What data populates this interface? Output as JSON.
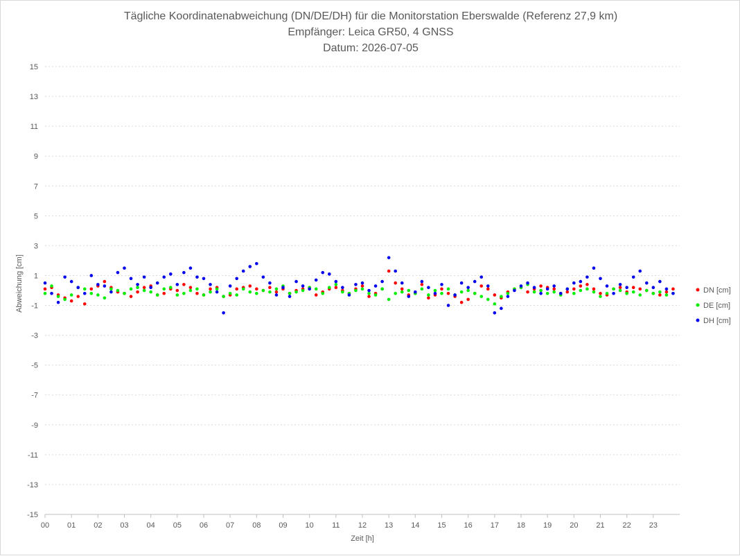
{
  "chart_data": {
    "type": "scatter",
    "title": "Tägliche Koordinatenabweichung (DN/DE/DH) für die Monitorstation Eberswalde (Referenz 27,9 km)",
    "subtitle": "Empfänger: Leica GR50, 4 GNSS",
    "date_line": "Datum: 2026-07-05",
    "xlabel": "Zeit [h]",
    "ylabel": "Abweichung [cm]",
    "xlim": [
      0,
      24
    ],
    "ylim": [
      -15,
      15
    ],
    "y_ticks": [
      -15,
      -13,
      -11,
      -9,
      -7,
      -5,
      -3,
      -1,
      1,
      3,
      5,
      7,
      9,
      11,
      13,
      15
    ],
    "x_tick_labels": [
      "00",
      "01",
      "02",
      "03",
      "04",
      "05",
      "06",
      "07",
      "08",
      "09",
      "10",
      "11",
      "12",
      "13",
      "14",
      "15",
      "16",
      "17",
      "18",
      "19",
      "20",
      "21",
      "22",
      "23"
    ],
    "grid": "horizontal dashed",
    "legend_position": "right",
    "x": [
      0.0,
      0.25,
      0.5,
      0.75,
      1.0,
      1.25,
      1.5,
      1.75,
      2.0,
      2.25,
      2.5,
      2.75,
      3.0,
      3.25,
      3.5,
      3.75,
      4.0,
      4.25,
      4.5,
      4.75,
      5.0,
      5.25,
      5.5,
      5.75,
      6.0,
      6.25,
      6.5,
      6.75,
      7.0,
      7.25,
      7.5,
      7.75,
      8.0,
      8.25,
      8.5,
      8.75,
      9.0,
      9.25,
      9.5,
      9.75,
      10.0,
      10.25,
      10.5,
      10.75,
      11.0,
      11.25,
      11.5,
      11.75,
      12.0,
      12.25,
      12.5,
      12.75,
      13.0,
      13.25,
      13.5,
      13.75,
      14.0,
      14.25,
      14.5,
      14.75,
      15.0,
      15.25,
      15.5,
      15.75,
      16.0,
      16.25,
      16.5,
      16.75,
      17.0,
      17.25,
      17.5,
      17.75,
      18.0,
      18.25,
      18.5,
      18.75,
      19.0,
      19.25,
      19.5,
      19.75,
      20.0,
      20.25,
      20.5,
      20.75,
      21.0,
      21.25,
      21.5,
      21.75,
      22.0,
      22.25,
      22.5,
      22.75,
      23.0,
      23.25,
      23.5,
      23.75
    ],
    "series": [
      {
        "name": "DN [cm]",
        "color": "#ff0000",
        "values": [
          0.1,
          0.2,
          -0.3,
          -0.5,
          -0.7,
          -0.4,
          -0.9,
          0.1,
          0.3,
          0.6,
          0.2,
          -0.1,
          -0.2,
          -0.4,
          -0.1,
          0.2,
          0.3,
          -0.3,
          -0.2,
          0.1,
          0.0,
          0.4,
          0.2,
          -0.2,
          -0.3,
          0.1,
          0.2,
          -0.4,
          -0.3,
          0.1,
          0.2,
          0.3,
          0.1,
          0.0,
          0.2,
          -0.1,
          0.1,
          -0.2,
          0.0,
          0.1,
          0.2,
          -0.3,
          -0.1,
          0.1,
          0.2,
          0.0,
          -0.2,
          0.1,
          0.3,
          -0.4,
          -0.2,
          0.1,
          1.3,
          0.5,
          0.1,
          -0.3,
          -0.2,
          0.4,
          -0.5,
          -0.3,
          0.1,
          -0.2,
          -0.4,
          -0.8,
          -0.6,
          -0.2,
          0.3,
          0.1,
          -0.3,
          -0.5,
          -0.1,
          0.1,
          0.2,
          -0.1,
          0.1,
          0.3,
          0.2,
          0.1,
          -0.2,
          -0.1,
          0.1,
          0.3,
          0.4,
          0.1,
          -0.2,
          -0.3,
          0.1,
          0.2,
          -0.1,
          0.2,
          0.1,
          0.0,
          -0.2,
          -0.3,
          -0.1,
          0.1
        ]
      },
      {
        "name": "DE [cm]",
        "color": "#00ee00",
        "values": [
          -0.2,
          0.3,
          -0.4,
          -0.6,
          -0.3,
          0.2,
          0.1,
          -0.2,
          -0.3,
          -0.5,
          0.1,
          0.0,
          -0.2,
          0.1,
          0.2,
          0.0,
          -0.1,
          -0.3,
          0.1,
          0.2,
          -0.3,
          -0.2,
          0.0,
          0.1,
          -0.3,
          -0.1,
          0.1,
          -0.4,
          -0.2,
          -0.3,
          0.1,
          -0.1,
          -0.2,
          0.0,
          -0.1,
          0.1,
          0.3,
          -0.2,
          -0.1,
          0.0,
          0.2,
          0.1,
          -0.2,
          0.2,
          0.4,
          -0.1,
          -0.2,
          0.0,
          0.1,
          -0.2,
          -0.3,
          0.1,
          -0.6,
          -0.2,
          -0.1,
          0.0,
          -0.2,
          0.1,
          -0.3,
          0.0,
          -0.2,
          0.1,
          -0.3,
          -0.1,
          0.0,
          -0.2,
          -0.4,
          -0.6,
          -0.9,
          -0.4,
          -0.2,
          0.1,
          0.2,
          0.4,
          -0.1,
          0.0,
          -0.2,
          -0.1,
          -0.3,
          0.1,
          -0.2,
          0.0,
          0.1,
          -0.1,
          -0.4,
          -0.2,
          0.1,
          0.0,
          -0.2,
          -0.1,
          -0.3,
          0.0,
          -0.2,
          -0.1,
          -0.3,
          -0.2
        ]
      },
      {
        "name": "DH [cm]",
        "color": "#0000ee",
        "values": [
          0.5,
          -0.2,
          -0.8,
          0.9,
          0.6,
          0.2,
          -0.2,
          1.0,
          0.4,
          0.3,
          -0.1,
          1.2,
          1.5,
          0.8,
          0.4,
          0.9,
          0.2,
          0.5,
          0.9,
          1.1,
          0.4,
          1.2,
          1.5,
          0.9,
          0.8,
          0.4,
          -0.1,
          -1.5,
          0.3,
          0.8,
          1.3,
          1.6,
          1.8,
          0.9,
          0.5,
          -0.3,
          0.2,
          -0.4,
          0.6,
          0.3,
          0.1,
          0.7,
          1.2,
          1.1,
          0.6,
          0.2,
          -0.3,
          0.4,
          0.5,
          0.0,
          0.3,
          0.6,
          2.2,
          1.3,
          0.5,
          -0.4,
          -0.1,
          0.6,
          0.2,
          -0.2,
          0.4,
          -1.0,
          -0.3,
          0.5,
          0.2,
          0.6,
          0.9,
          0.3,
          -1.5,
          -1.2,
          -0.4,
          0.0,
          0.3,
          0.5,
          0.2,
          -0.2,
          0.1,
          0.3,
          -0.2,
          0.1,
          0.5,
          0.6,
          0.9,
          1.5,
          0.8,
          0.3,
          -0.2,
          0.4,
          0.2,
          0.9,
          1.3,
          0.5,
          0.2,
          0.6,
          0.1,
          -0.2
        ]
      }
    ]
  }
}
